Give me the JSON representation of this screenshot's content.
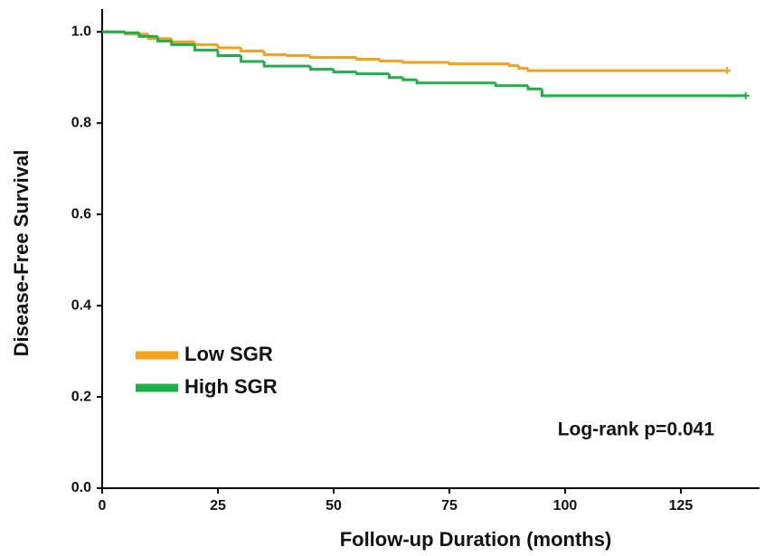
{
  "chart_data": {
    "type": "step",
    "xlabel": "Follow-up Duration (months)",
    "ylabel": "Disease-Free Survival",
    "annotation": "Log-rank p=0.041",
    "xlim": [
      0,
      142
    ],
    "xticks": [
      0,
      25,
      50,
      75,
      100,
      125
    ],
    "ylim": [
      0,
      1.05
    ],
    "yticks": [
      {
        "value": 0,
        "label": "0.0"
      },
      0.2,
      0.4,
      0.6,
      0.8,
      {
        "value": 1,
        "label": "1.0"
      }
    ],
    "series": [
      {
        "name": "Low SGR",
        "color": "#f7a11a",
        "x": [
          0,
          5,
          10,
          15,
          20,
          25,
          30,
          35,
          40,
          45,
          55,
          60,
          65,
          75,
          88,
          90,
          92,
          135
        ],
        "values": [
          1.0,
          0.995,
          0.985,
          0.978,
          0.972,
          0.965,
          0.958,
          0.95,
          0.948,
          0.944,
          0.94,
          0.936,
          0.933,
          0.93,
          0.926,
          0.92,
          0.915,
          0.915
        ]
      },
      {
        "name": "High SGR",
        "color": "#1bb04a",
        "x": [
          0,
          5,
          8,
          12,
          15,
          20,
          25,
          30,
          35,
          45,
          50,
          55,
          62,
          65,
          68,
          75,
          85,
          92,
          95,
          139
        ],
        "values": [
          1.0,
          0.998,
          0.99,
          0.98,
          0.972,
          0.96,
          0.948,
          0.935,
          0.925,
          0.918,
          0.912,
          0.908,
          0.9,
          0.895,
          0.888,
          0.888,
          0.882,
          0.875,
          0.86,
          0.86
        ]
      }
    ]
  }
}
